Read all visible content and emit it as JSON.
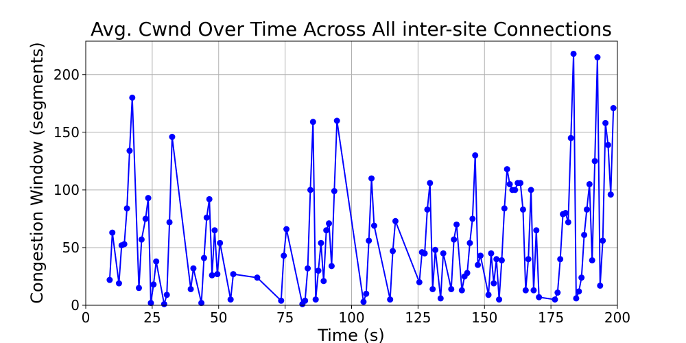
{
  "chart_data": {
    "type": "line",
    "title": "Avg. Cwnd Over Time Across All inter-site Connections",
    "xlabel": "Time (s)",
    "ylabel": "Congestion Window (segments)",
    "xlim": [
      0,
      200
    ],
    "ylim": [
      0,
      229
    ],
    "xticks": [
      0,
      25,
      50,
      75,
      100,
      125,
      150,
      175,
      200
    ],
    "yticks": [
      0,
      50,
      100,
      150,
      200
    ],
    "grid": true,
    "series": [
      {
        "color": "#0000ff",
        "marker": "circle",
        "points": [
          [
            9,
            22
          ],
          [
            10,
            63
          ],
          [
            12.5,
            19
          ],
          [
            13.5,
            52
          ],
          [
            14.5,
            53
          ],
          [
            15.5,
            84
          ],
          [
            16.5,
            134
          ],
          [
            17.5,
            180
          ],
          [
            20,
            15
          ],
          [
            21,
            57
          ],
          [
            22.5,
            75
          ],
          [
            23.5,
            93
          ],
          [
            24.5,
            2
          ],
          [
            25.5,
            18
          ],
          [
            26.5,
            38
          ],
          [
            29.5,
            1
          ],
          [
            30.5,
            9
          ],
          [
            31.5,
            72
          ],
          [
            32.5,
            146
          ],
          [
            39.5,
            14
          ],
          [
            40.5,
            32
          ],
          [
            43.5,
            2
          ],
          [
            44.5,
            41
          ],
          [
            45.5,
            76
          ],
          [
            46.5,
            92
          ],
          [
            47.5,
            26
          ],
          [
            48.5,
            65
          ],
          [
            49.5,
            27
          ],
          [
            50.5,
            54
          ],
          [
            54.5,
            5
          ],
          [
            55.5,
            27
          ],
          [
            64.5,
            24
          ],
          [
            73.5,
            4
          ],
          [
            74.5,
            43
          ],
          [
            75.5,
            66
          ],
          [
            81.5,
            1
          ],
          [
            82.5,
            4
          ],
          [
            83.5,
            32
          ],
          [
            84.5,
            100
          ],
          [
            85.5,
            159
          ],
          [
            86.5,
            5
          ],
          [
            87.5,
            30
          ],
          [
            88.5,
            54
          ],
          [
            89.5,
            21
          ],
          [
            90.5,
            65
          ],
          [
            91.5,
            71
          ],
          [
            92.5,
            34
          ],
          [
            93.5,
            99
          ],
          [
            94.5,
            160
          ],
          [
            104.5,
            3
          ],
          [
            105.5,
            10
          ],
          [
            106.5,
            56
          ],
          [
            107.5,
            110
          ],
          [
            108.5,
            69
          ],
          [
            114.5,
            5
          ],
          [
            115.5,
            47
          ],
          [
            116.5,
            73
          ],
          [
            125.5,
            20
          ],
          [
            126.5,
            46
          ],
          [
            127.5,
            45
          ],
          [
            128.5,
            83
          ],
          [
            129.5,
            106
          ],
          [
            130.5,
            14
          ],
          [
            131.5,
            48
          ],
          [
            133.5,
            6
          ],
          [
            134.5,
            45
          ],
          [
            137.5,
            14
          ],
          [
            138.5,
            57
          ],
          [
            139.5,
            70
          ],
          [
            141.5,
            13
          ],
          [
            142.5,
            25
          ],
          [
            143.5,
            28
          ],
          [
            144.5,
            54
          ],
          [
            145.5,
            75
          ],
          [
            146.5,
            130
          ],
          [
            147.5,
            35
          ],
          [
            148.5,
            43
          ],
          [
            151.5,
            9
          ],
          [
            152.5,
            45
          ],
          [
            153.5,
            19
          ],
          [
            154.5,
            40
          ],
          [
            155.5,
            5
          ],
          [
            156.5,
            39
          ],
          [
            157.5,
            84
          ],
          [
            158.5,
            118
          ],
          [
            159.5,
            105
          ],
          [
            160.5,
            100
          ],
          [
            161.5,
            100
          ],
          [
            162.5,
            106
          ],
          [
            163.5,
            106
          ],
          [
            164.5,
            83
          ],
          [
            165.5,
            13
          ],
          [
            166.5,
            40
          ],
          [
            167.5,
            100
          ],
          [
            168.5,
            13
          ],
          [
            169.5,
            65
          ],
          [
            170.5,
            7
          ],
          [
            176.5,
            5
          ],
          [
            177.5,
            11
          ],
          [
            178.5,
            40
          ],
          [
            179.5,
            79
          ],
          [
            180.5,
            80
          ],
          [
            181.5,
            72
          ],
          [
            182.5,
            145
          ],
          [
            183.5,
            218
          ],
          [
            184.5,
            6
          ],
          [
            185.5,
            12
          ],
          [
            186.5,
            24
          ],
          [
            187.5,
            61
          ],
          [
            188.5,
            83
          ],
          [
            189.5,
            105
          ],
          [
            190.5,
            39
          ],
          [
            191.5,
            125
          ],
          [
            192.5,
            215
          ],
          [
            193.5,
            17
          ],
          [
            194.5,
            56
          ],
          [
            195.5,
            158
          ],
          [
            196.5,
            139
          ],
          [
            197.5,
            96
          ],
          [
            198.5,
            171
          ]
        ]
      }
    ]
  }
}
